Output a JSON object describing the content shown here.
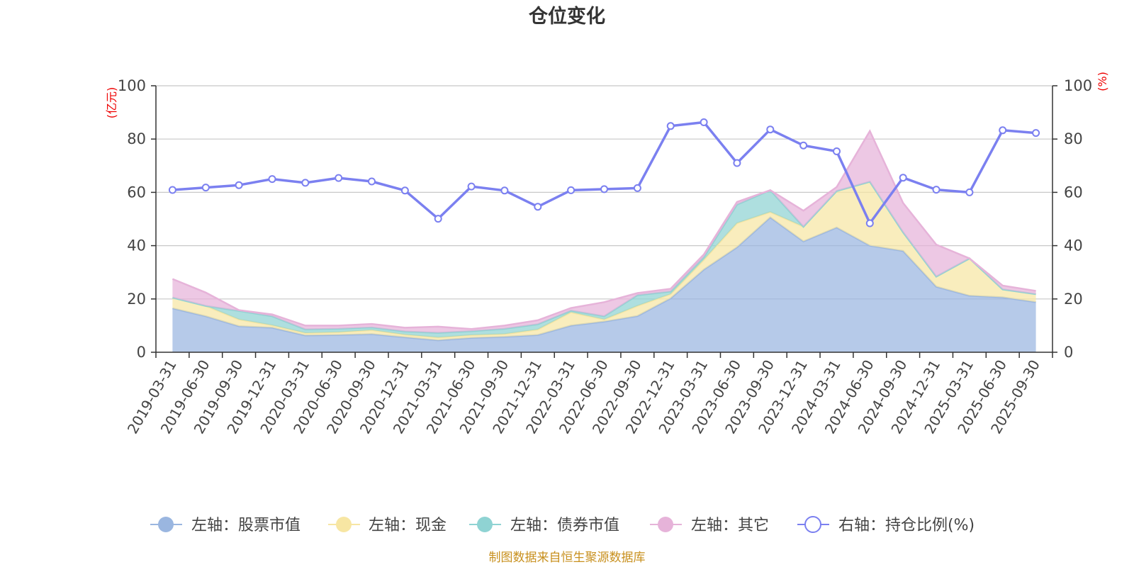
{
  "chart_data": {
    "type": "area",
    "title": "仓位变化",
    "left_axis_unit": "(亿元)",
    "right_axis_unit": "(%)",
    "left_ylim": [
      0,
      100
    ],
    "right_ylim": [
      0,
      100
    ],
    "left_ticks": [
      "0",
      "20",
      "40",
      "60",
      "80",
      "100"
    ],
    "right_ticks": [
      "0",
      "20",
      "40",
      "60",
      "80",
      "100"
    ],
    "x": [
      "2019-03-31",
      "2019-06-30",
      "2019-09-30",
      "2019-12-31",
      "2020-03-31",
      "2020-06-30",
      "2020-09-30",
      "2020-12-31",
      "2021-03-31",
      "2021-06-30",
      "2021-09-30",
      "2021-12-31",
      "2022-03-31",
      "2022-06-30",
      "2022-09-30",
      "2022-12-31",
      "2023-03-31",
      "2023-06-30",
      "2023-09-30",
      "2023-12-31",
      "2024-03-31",
      "2024-06-30",
      "2024-09-30",
      "2024-12-31",
      "2025-03-31",
      "2025-06-30",
      "2025-09-30"
    ],
    "series": [
      {
        "name": "左轴：股票市值",
        "axis": "left",
        "stack": true,
        "color": "#9ab6e0",
        "values": [
          16.5,
          13.5,
          9.8,
          9.2,
          6.3,
          6.5,
          6.8,
          5.6,
          4.5,
          5.4,
          5.8,
          6.5,
          10.0,
          11.5,
          13.6,
          20.2,
          31.0,
          39.4,
          50.6,
          41.6,
          46.8,
          40.0,
          38.0,
          24.6,
          21.2,
          20.6,
          18.8
        ]
      },
      {
        "name": "左轴：现金",
        "axis": "left",
        "stack": true,
        "color": "#f7e6a3",
        "values": [
          4.0,
          3.9,
          2.5,
          0.9,
          0.9,
          1.0,
          1.5,
          1.0,
          1.0,
          1.0,
          1.0,
          2.0,
          5.0,
          0.8,
          3.8,
          1.6,
          3.7,
          9.0,
          2.0,
          5.5,
          13.7,
          24.0,
          7.0,
          3.8,
          14.0,
          3.0,
          3.0
        ]
      },
      {
        "name": "左轴：债券市值",
        "axis": "left",
        "stack": true,
        "color": "#8fd3d3",
        "values": [
          0,
          0,
          3.2,
          3.4,
          1.4,
          1.3,
          1.0,
          1.2,
          1.8,
          1.5,
          2.0,
          2.0,
          0.6,
          1.2,
          4.0,
          1.0,
          1.0,
          7.0,
          8.2,
          0,
          0,
          0,
          0,
          0,
          0,
          0,
          0
        ]
      },
      {
        "name": "左轴：其它",
        "axis": "left",
        "stack": true,
        "color": "#e6b3d9",
        "values": [
          7.0,
          5.0,
          0.3,
          0.7,
          1.4,
          1.2,
          1.3,
          1.4,
          2.3,
          0.8,
          1.2,
          1.5,
          1.0,
          5.3,
          0.8,
          1.0,
          1.0,
          1.0,
          0,
          6.0,
          1.5,
          19.0,
          11.0,
          12.0,
          0,
          1.4,
          1.2
        ]
      },
      {
        "name": "右轴：持仓比例(%)",
        "axis": "right",
        "type": "line",
        "color": "#7b80f0",
        "values": [
          60.9,
          61.8,
          62.7,
          65.0,
          63.6,
          65.4,
          64.1,
          60.7,
          50.1,
          62.2,
          60.7,
          54.6,
          60.8,
          61.2,
          61.6,
          84.9,
          86.3,
          71.0,
          83.6,
          77.6,
          75.4,
          48.4,
          65.5,
          61.0,
          60.0,
          83.3,
          82.3
        ]
      }
    ],
    "grid": true,
    "legend_position": "bottom-center"
  },
  "source_note": "制图数据来自恒生聚源数据库"
}
